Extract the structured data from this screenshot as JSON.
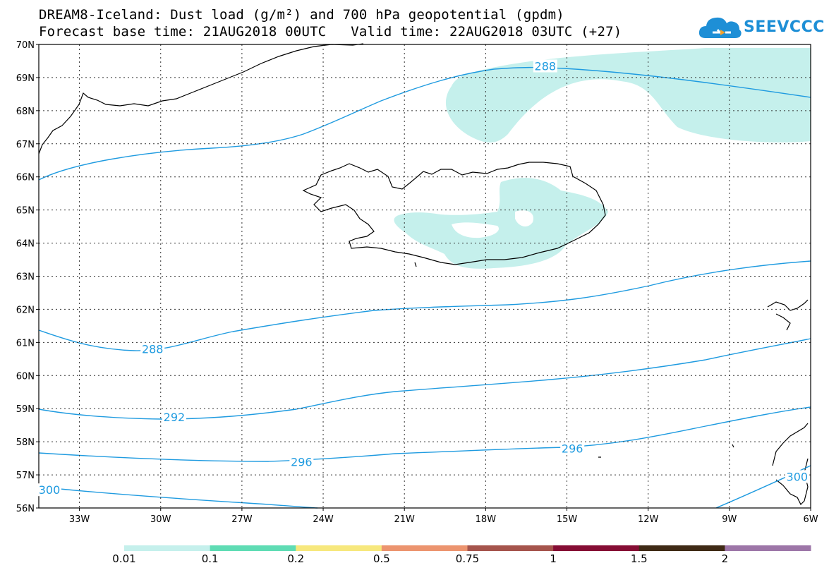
{
  "title_line1": "DREAM8-Iceland: Dust load (g/m²) and 700 hPa geopotential (gpdm)",
  "title_line2": "Forecast base time: 21AUG2018 00UTC   Valid time: 22AUG2018 03UTC (+27)",
  "logo_text": "SEEVCCC",
  "logo_icon": "cloud-icon",
  "map": {
    "lon_range": [
      -34.5,
      -6
    ],
    "lat_range": [
      56,
      70
    ],
    "lon_ticks": [
      "33W",
      "30W",
      "27W",
      "24W",
      "21W",
      "18W",
      "15W",
      "12W",
      "9W",
      "6W"
    ],
    "lat_ticks": [
      "70N",
      "69N",
      "68N",
      "67N",
      "66N",
      "65N",
      "64N",
      "63N",
      "62N",
      "61N",
      "60N",
      "59N",
      "58N",
      "57N",
      "56N"
    ],
    "contour_color": "#1f9be0",
    "dust_fill_color": "#c5f0ec",
    "contour_labels": [
      {
        "text": "288",
        "lon": -15.8,
        "lat": 69.35
      },
      {
        "text": "288",
        "lon": -30.3,
        "lat": 60.8
      },
      {
        "text": "292",
        "lon": -29.5,
        "lat": 58.75
      },
      {
        "text": "296",
        "lon": -24.8,
        "lat": 57.4
      },
      {
        "text": "296",
        "lon": -14.8,
        "lat": 57.8
      },
      {
        "text": "300",
        "lon": -34.6,
        "lat": 56.55
      },
      {
        "text": "300",
        "lon": -6.5,
        "lat": 56.95
      }
    ]
  },
  "colorbar": {
    "colors": [
      "#c5f0ec",
      "#5fdcb4",
      "#f7e87d",
      "#ec946f",
      "#a5544c",
      "#850d34",
      "#3f2a15",
      "#9d76a8"
    ],
    "labels": [
      "0.01",
      "0.1",
      "0.2",
      "0.5",
      "0.75",
      "1",
      "1.5",
      "2"
    ]
  }
}
